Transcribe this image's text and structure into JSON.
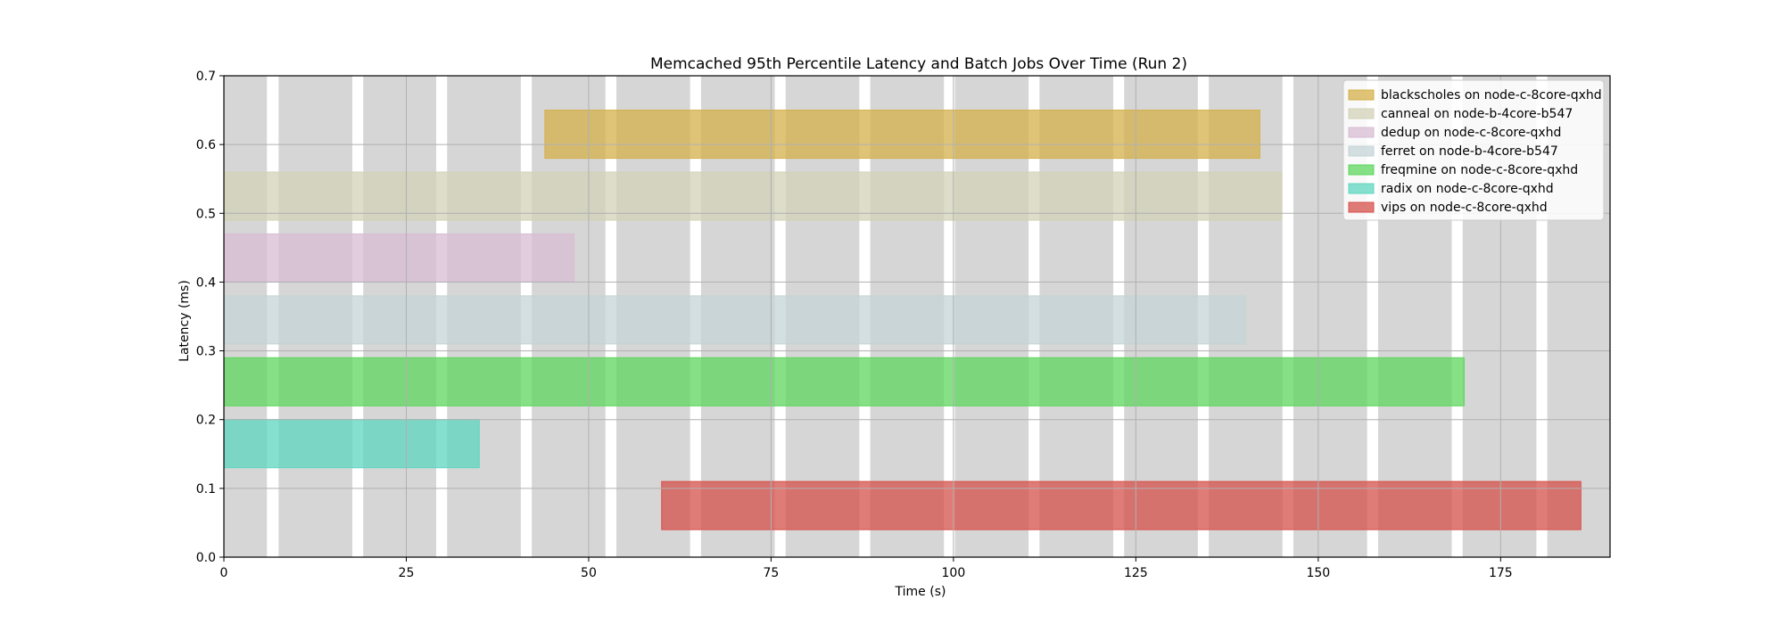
{
  "chart_data": {
    "type": "bar",
    "orientation": "horizontal-timeline",
    "title": "Memcached 95th Percentile Latency and Batch Jobs Over Time (Run 2)",
    "xlabel": "Time (s)",
    "ylabel": "Latency (ms)",
    "xlim": [
      0,
      190
    ],
    "ylim": [
      0,
      0.7
    ],
    "xticks": [
      0,
      25,
      50,
      75,
      100,
      125,
      150,
      175
    ],
    "yticks": [
      0.0,
      0.1,
      0.2,
      0.3,
      0.4,
      0.5,
      0.6,
      0.7
    ],
    "grid": true,
    "legend_position": "top-right",
    "latency_bars": [
      {
        "start": 0.0,
        "end": 5.9,
        "value": 0.7
      },
      {
        "start": 7.5,
        "end": 17.6,
        "value": 0.7
      },
      {
        "start": 19.1,
        "end": 29.1,
        "value": 0.7
      },
      {
        "start": 30.6,
        "end": 40.7,
        "value": 0.7
      },
      {
        "start": 42.2,
        "end": 52.3,
        "value": 0.7
      },
      {
        "start": 53.8,
        "end": 63.9,
        "value": 0.7
      },
      {
        "start": 65.4,
        "end": 75.5,
        "value": 0.7
      },
      {
        "start": 77.0,
        "end": 87.1,
        "value": 0.7
      },
      {
        "start": 88.6,
        "end": 98.7,
        "value": 0.7
      },
      {
        "start": 100.2,
        "end": 110.3,
        "value": 0.7
      },
      {
        "start": 111.8,
        "end": 121.9,
        "value": 0.7
      },
      {
        "start": 123.4,
        "end": 133.5,
        "value": 0.7
      },
      {
        "start": 135.0,
        "end": 145.1,
        "value": 0.7
      },
      {
        "start": 146.6,
        "end": 156.7,
        "value": 0.7
      },
      {
        "start": 158.2,
        "end": 168.3,
        "value": 0.7
      },
      {
        "start": 169.8,
        "end": 179.9,
        "value": 0.7
      },
      {
        "start": 181.4,
        "end": 190.0,
        "value": 0.7
      }
    ],
    "latency_color": "#d6d6d6",
    "series": [
      {
        "name": "blackscholes on node-c-8core-qxhd",
        "start": 44.0,
        "end": 142.0,
        "low": 0.58,
        "high": 0.65,
        "color": "#d4b04a"
      },
      {
        "name": "canneal on node-b-4core-b547",
        "start": 0.0,
        "end": 145.0,
        "low": 0.49,
        "high": 0.56,
        "color": "#d2d2b8"
      },
      {
        "name": "dedup on node-c-8core-qxhd",
        "start": 0.0,
        "end": 48.0,
        "low": 0.4,
        "high": 0.47,
        "color": "#d8bcd4"
      },
      {
        "name": "ferret on node-b-4core-b547",
        "start": 0.0,
        "end": 140.0,
        "low": 0.31,
        "high": 0.38,
        "color": "#c4d4d6"
      },
      {
        "name": "freqmine on node-c-8core-qxhd",
        "start": 0.0,
        "end": 170.0,
        "low": 0.22,
        "high": 0.29,
        "color": "#5ed65e"
      },
      {
        "name": "radix on node-c-8core-qxhd",
        "start": 0.0,
        "end": 35.0,
        "low": 0.13,
        "high": 0.2,
        "color": "#5ed6c0"
      },
      {
        "name": "vips on node-c-8core-qxhd",
        "start": 60.0,
        "end": 186.0,
        "low": 0.04,
        "high": 0.11,
        "color": "#d6504a"
      }
    ]
  }
}
